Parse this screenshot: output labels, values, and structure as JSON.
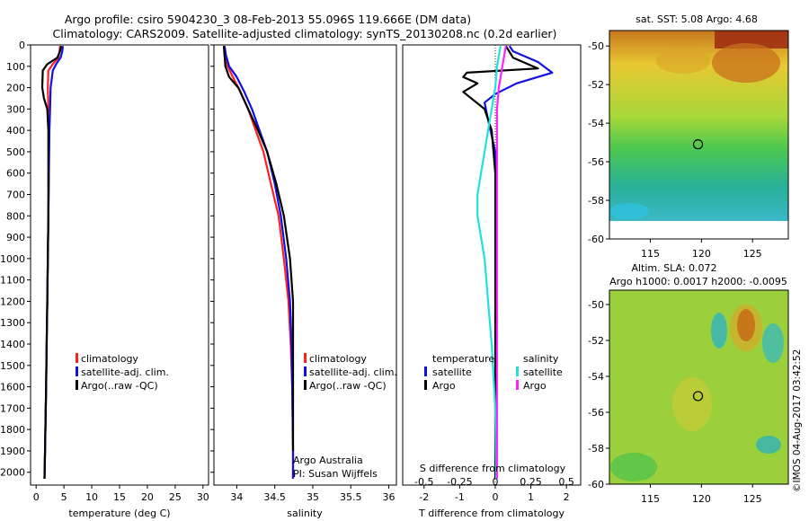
{
  "header": {
    "line1": "Argo profile: csiro 5904230_3 08-Feb-2013 55.096S 119.666E (DM data)",
    "line2": "Climatology: CARS2009. Satellite-adjusted climatology: synTS_20130208.nc (0.2d earlier)"
  },
  "footer": {
    "stamp": "©IMOS 04-Aug-2017 03:42:52"
  },
  "colors": {
    "red": "#ff2020",
    "blue": "#1010e0",
    "black": "#000000",
    "cyan": "#22e0e0",
    "magenta": "#ff22ff"
  },
  "chart_data": [
    {
      "type": "line",
      "xlabel": "temperature (deg C)",
      "xlim": [
        -1,
        31
      ],
      "xticks": [
        0,
        5,
        10,
        15,
        20,
        25,
        30
      ],
      "ylim": [
        2060,
        0
      ],
      "yticks": [
        0,
        100,
        200,
        300,
        400,
        500,
        600,
        700,
        800,
        900,
        1000,
        1100,
        1200,
        1300,
        1400,
        1500,
        1600,
        1700,
        1800,
        1900,
        2000
      ],
      "legend": [
        "climatology",
        "satellite-adj. clim.",
        "Argo(..raw -QC)"
      ],
      "series": [
        {
          "name": "climatology",
          "color": "red",
          "x": [
            4.3,
            4.2,
            4.0,
            3.0,
            2.2,
            2.1,
            2.2,
            2.3,
            2.3,
            2.2,
            2.1,
            2.0,
            1.9,
            1.8,
            1.6,
            1.5
          ],
          "y": [
            5,
            30,
            60,
            90,
            120,
            200,
            300,
            400,
            600,
            800,
            1000,
            1200,
            1400,
            1600,
            1900,
            2030
          ]
        },
        {
          "name": "satellite-adj. clim.",
          "color": "blue",
          "x": [
            4.8,
            4.7,
            4.4,
            3.6,
            3.0,
            2.6,
            2.5,
            2.4,
            2.3,
            2.2,
            2.1,
            2.0,
            1.9,
            1.8,
            1.6,
            1.5
          ],
          "y": [
            5,
            30,
            60,
            90,
            120,
            200,
            300,
            400,
            600,
            800,
            1000,
            1200,
            1400,
            1600,
            1900,
            2030
          ]
        },
        {
          "name": "Argo(..raw -QC)",
          "color": "black",
          "x": [
            4.5,
            4.3,
            3.8,
            2.0,
            1.2,
            1.1,
            1.4,
            2.0,
            2.2,
            2.2,
            2.1,
            2.0,
            1.9,
            1.8,
            1.6,
            1.5
          ],
          "y": [
            5,
            30,
            60,
            90,
            120,
            200,
            250,
            300,
            400,
            800,
            1000,
            1200,
            1400,
            1600,
            1900,
            2030
          ]
        }
      ]
    },
    {
      "type": "line",
      "xlabel": "salinity",
      "xlim": [
        33.7,
        36.1
      ],
      "xticks": [
        34,
        34.5,
        35,
        35.5,
        36
      ],
      "ylim": [
        2060,
        0
      ],
      "legend": [
        "climatology",
        "satellite-adj. clim.",
        "Argo(..raw -QC)"
      ],
      "annotation": [
        "Argo Australia",
        "PI: Susan Wijffels"
      ],
      "series": [
        {
          "name": "climatology",
          "color": "red",
          "x": [
            33.83,
            33.85,
            33.88,
            33.95,
            34.05,
            34.15,
            34.25,
            34.35,
            34.45,
            34.55,
            34.62,
            34.68,
            34.71,
            34.73,
            34.74,
            34.74
          ],
          "y": [
            5,
            50,
            100,
            150,
            220,
            300,
            400,
            500,
            650,
            800,
            1000,
            1200,
            1400,
            1600,
            1900,
            2030
          ]
        },
        {
          "name": "satellite-adj. clim.",
          "color": "blue",
          "x": [
            33.84,
            33.86,
            33.9,
            34.0,
            34.1,
            34.2,
            34.3,
            34.4,
            34.5,
            34.58,
            34.65,
            34.7,
            34.72,
            34.73,
            34.74,
            34.74
          ],
          "y": [
            5,
            50,
            100,
            150,
            220,
            300,
            400,
            500,
            650,
            800,
            1000,
            1200,
            1400,
            1600,
            1900,
            2030
          ]
        },
        {
          "name": "Argo(..raw -QC)",
          "color": "black",
          "x": [
            33.83,
            33.84,
            33.85,
            33.9,
            34.02,
            34.15,
            34.28,
            34.4,
            34.52,
            34.62,
            34.7,
            34.74,
            34.74,
            34.74,
            34.74
          ],
          "y": [
            5,
            50,
            100,
            150,
            200,
            300,
            400,
            500,
            650,
            800,
            1000,
            1200,
            1400,
            1600,
            1900
          ]
        }
      ]
    },
    {
      "type": "line",
      "xlabel": "T difference from climatology",
      "xlabel_top": "S difference from climatology",
      "xlim": [
        -2.6,
        2.4
      ],
      "xticks": [
        -2,
        -1,
        0,
        1,
        2
      ],
      "xticks_top": [
        -0.5,
        -0.25,
        0,
        0.25,
        0.5
      ],
      "ylim": [
        2060,
        0
      ],
      "legend_groups": {
        "temperature": [
          "satellite",
          "Argo"
        ],
        "salinity": [
          "satellite",
          "Argo"
        ]
      },
      "series": [
        {
          "name": "T satellite",
          "color": "blue",
          "x": [
            0.4,
            0.5,
            1.2,
            1.6,
            0.6,
            0,
            -0.3,
            -0.2,
            0,
            0.05,
            0.05,
            0.05,
            0.05,
            0.05,
            0.05
          ],
          "y": [
            5,
            30,
            80,
            130,
            180,
            230,
            270,
            350,
            500,
            800,
            1000,
            1300,
            1600,
            1900,
            2030
          ]
        },
        {
          "name": "T Argo",
          "color": "black",
          "x": [
            0.3,
            0.5,
            1.2,
            -0.8,
            -0.9,
            -0.5,
            -0.9,
            -0.3,
            -0.1,
            0,
            0,
            0,
            0,
            0,
            0
          ],
          "y": [
            5,
            60,
            110,
            130,
            150,
            180,
            220,
            300,
            400,
            600,
            900,
            1200,
            1500,
            1800,
            2030
          ]
        },
        {
          "name": "S satellite",
          "color": "cyan",
          "x": [
            0.15,
            0.05,
            0,
            -0.1,
            -0.2,
            -0.3,
            -0.4,
            -0.5,
            -0.5,
            -0.4,
            -0.3,
            -0.2,
            -0.1,
            0,
            0.03
          ],
          "y": [
            5,
            100,
            200,
            300,
            400,
            500,
            600,
            700,
            800,
            900,
            1000,
            1200,
            1400,
            1700,
            2030
          ]
        },
        {
          "name": "S Argo",
          "color": "magenta",
          "x": [
            0.3,
            0.2,
            0.1,
            0.05,
            0.05,
            0.05,
            0.05,
            0.05,
            0.05,
            0.05
          ],
          "y": [
            5,
            100,
            200,
            300,
            500,
            800,
            1100,
            1400,
            1700,
            2030
          ]
        }
      ]
    },
    {
      "type": "heatmap",
      "title": "sat. SST: 5.08 Argo: 4.68",
      "xlim": [
        111,
        128.5
      ],
      "ylim": [
        -60,
        -49.2
      ],
      "xticks": [
        115,
        120,
        125
      ],
      "yticks": [
        -50,
        -52,
        -54,
        -56,
        -58,
        -60
      ],
      "marker": {
        "lon": 119.666,
        "lat": -55.096
      }
    },
    {
      "type": "heatmap",
      "title": "Altim. SLA: 0.072",
      "subtitle": "Argo h1000: 0.0017 h2000: -0.0095",
      "xlim": [
        111,
        128.5
      ],
      "ylim": [
        -60,
        -49.2
      ],
      "xticks": [
        115,
        120,
        125
      ],
      "yticks": [
        -50,
        -52,
        -54,
        -56,
        -58,
        -60
      ],
      "marker": {
        "lon": 119.666,
        "lat": -55.096
      }
    }
  ]
}
